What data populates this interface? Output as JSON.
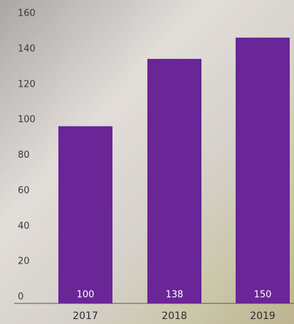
{
  "chart_data": {
    "type": "bar",
    "categories": [
      "2017",
      "2018",
      "2019"
    ],
    "values": [
      100,
      138,
      150
    ],
    "color": "#6a2597",
    "ylim": [
      0,
      160
    ],
    "yticks": [
      0,
      20,
      40,
      60,
      80,
      100,
      120,
      140,
      160
    ],
    "grid": false
  }
}
